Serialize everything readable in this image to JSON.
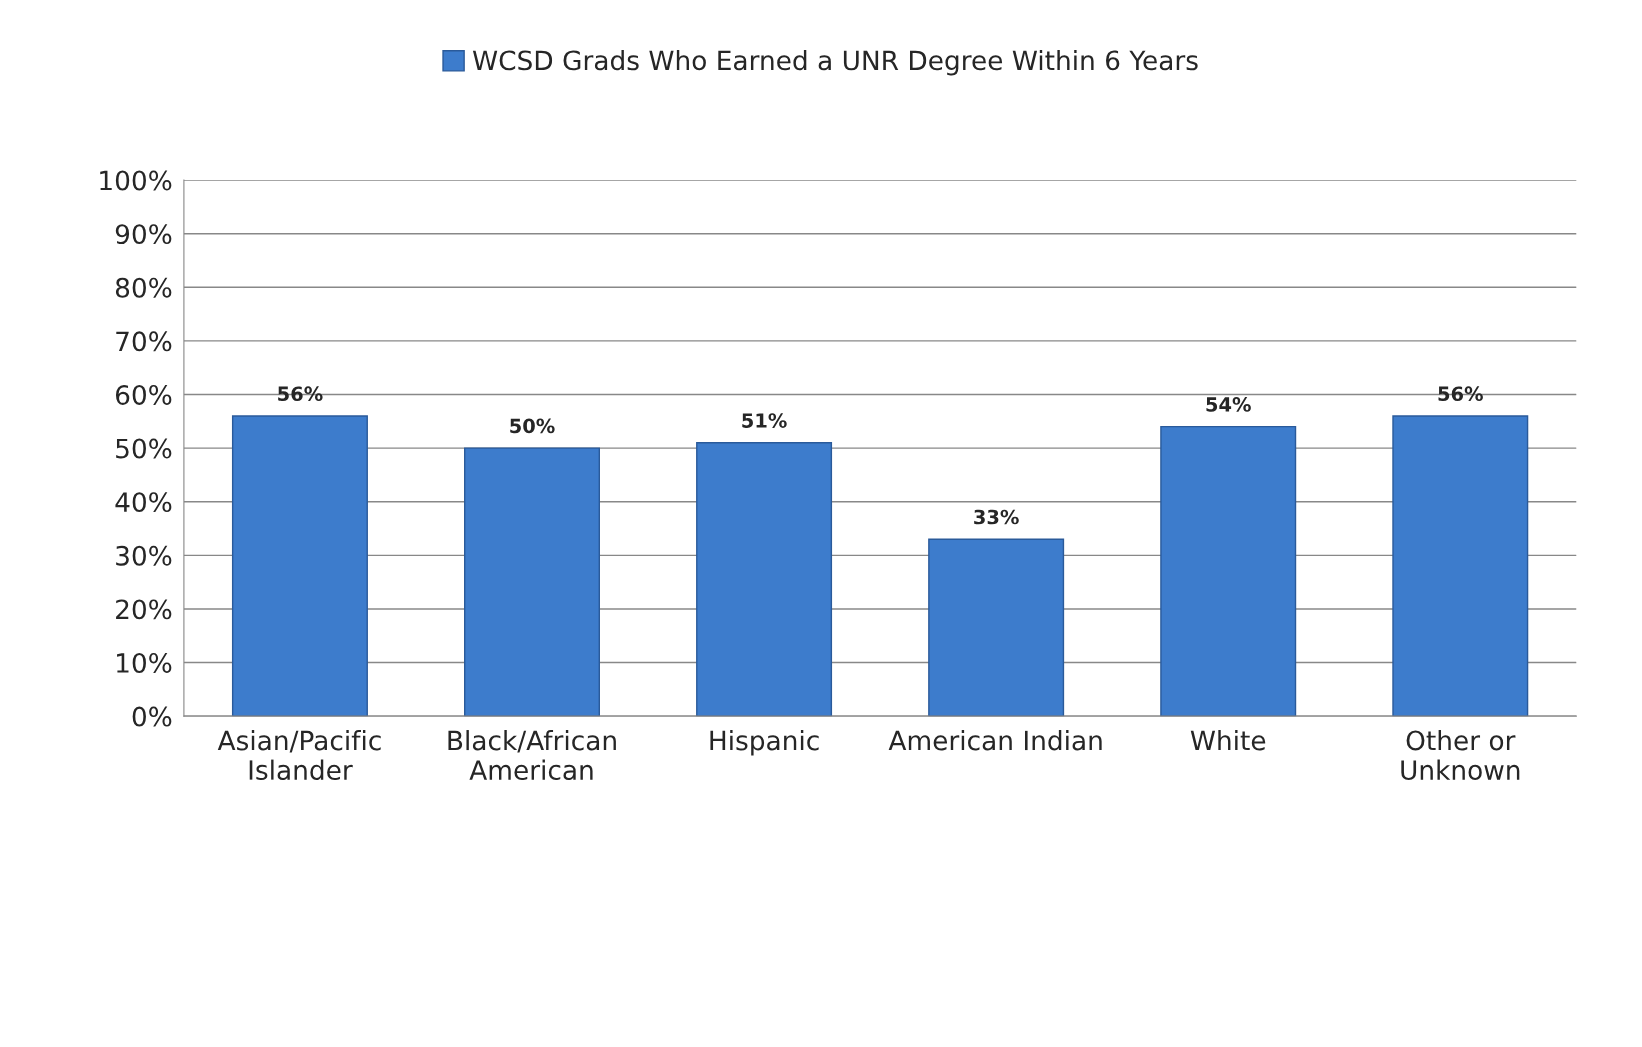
{
  "chart_data": {
    "type": "bar",
    "categories": [
      "Asian/Pacific\nIslander",
      "Black/African\nAmerican",
      "Hispanic",
      "American Indian",
      "White",
      "Other or\nUnknown"
    ],
    "series": [
      {
        "name": "WCSD Grads Who Earned a UNR Degree Within 6 Years",
        "color": "#3d7ccc",
        "values": [
          56,
          50,
          51,
          33,
          54,
          56
        ],
        "value_labels": [
          "56%",
          "50%",
          "51%",
          "33%",
          "54%",
          "56%"
        ]
      }
    ],
    "ylim": [
      0,
      100
    ],
    "yticks": [
      {
        "value": 0,
        "label": "0%"
      },
      {
        "value": 10,
        "label": "10%"
      },
      {
        "value": 20,
        "label": "20%"
      },
      {
        "value": 30,
        "label": "30%"
      },
      {
        "value": 40,
        "label": "40%"
      },
      {
        "value": 50,
        "label": "50%"
      },
      {
        "value": 60,
        "label": "60%"
      },
      {
        "value": 70,
        "label": "70%"
      },
      {
        "value": 80,
        "label": "80%"
      },
      {
        "value": 90,
        "label": "90%"
      },
      {
        "value": 100,
        "label": "100%"
      }
    ],
    "grid": "y",
    "legend": "top"
  }
}
